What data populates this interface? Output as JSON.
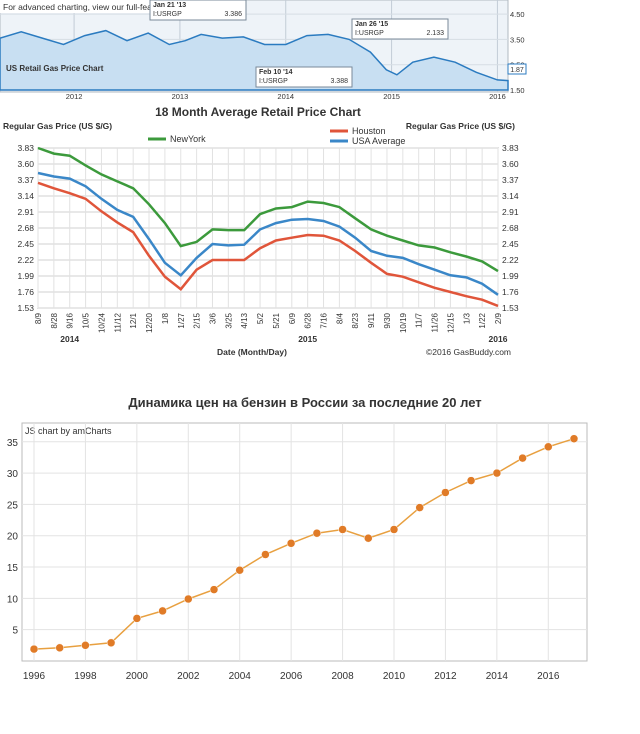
{
  "charts_meta": {
    "top_note": "For advanced charting, view our full-feature",
    "top_box_label": "US Retail Gas Price Chart",
    "callouts": [
      {
        "date": "Jan 21 '13",
        "symbol": "I:USRGP",
        "value": "3.386"
      },
      {
        "date": "Feb 10 '14",
        "symbol": "I:USRGP",
        "value": "3.388"
      },
      {
        "date": "Jan 26 '15",
        "symbol": "I:USRGP",
        "value": "2.133"
      }
    ],
    "current_badge": "1.87",
    "credit": "©2016 GasBuddy.com",
    "amcharts_credit": "JS chart by amCharts"
  },
  "chart_data": [
    {
      "type": "area",
      "title": "US Retail Gas Price Chart",
      "x": [
        2011.3,
        2011.5,
        2011.7,
        2011.9,
        2012.1,
        2012.3,
        2012.5,
        2012.7,
        2012.9,
        2013.05,
        2013.2,
        2013.4,
        2013.6,
        2013.8,
        2014.0,
        2014.2,
        2014.4,
        2014.6,
        2014.8,
        2014.95,
        2015.05,
        2015.2,
        2015.4,
        2015.6,
        2015.8,
        2016.0,
        2016.1
      ],
      "y": [
        3.55,
        3.8,
        3.55,
        3.3,
        3.65,
        3.85,
        3.45,
        3.75,
        3.3,
        3.45,
        3.7,
        3.55,
        3.6,
        3.3,
        3.3,
        3.65,
        3.7,
        3.5,
        3.0,
        2.3,
        2.1,
        2.6,
        2.8,
        2.6,
        2.2,
        1.9,
        1.87
      ],
      "x_ticks": [
        "2012",
        "2013",
        "2014",
        "2015",
        "2016"
      ],
      "y_ticks": [
        "1.50",
        "2.50",
        "3.50",
        "4.50"
      ],
      "xlim": [
        2011.3,
        2016.1
      ],
      "ylim": [
        1.5,
        4.9
      ]
    },
    {
      "type": "line",
      "title": "18 Month Average Retail Price Chart",
      "ylabel": "Regular Gas Price (US $/G)",
      "xlabel": "Date (Month/Day)",
      "categories": [
        "8/9",
        "8/28",
        "9/16",
        "10/5",
        "10/24",
        "11/12",
        "12/1",
        "12/20",
        "1/8",
        "1/27",
        "2/15",
        "3/6",
        "3/25",
        "4/13",
        "5/2",
        "5/21",
        "6/9",
        "6/28",
        "7/16",
        "8/4",
        "8/23",
        "9/11",
        "9/30",
        "10/19",
        "11/7",
        "11/26",
        "12/15",
        "1/3",
        "1/22",
        "2/9"
      ],
      "year_labels": [
        {
          "at": "9/16",
          "text": "2014"
        },
        {
          "at": "6/28",
          "text": "2015"
        },
        {
          "at": "2/9",
          "text": "2016"
        }
      ],
      "y_ticks": [
        1.53,
        1.76,
        1.99,
        2.22,
        2.45,
        2.68,
        2.91,
        3.14,
        3.37,
        3.6,
        3.83
      ],
      "ylim": [
        1.53,
        3.83
      ],
      "series": [
        {
          "name": "NewYork",
          "color": "#3c9a3c",
          "values": [
            3.83,
            3.75,
            3.72,
            3.58,
            3.45,
            3.35,
            3.25,
            3.02,
            2.75,
            2.42,
            2.48,
            2.66,
            2.65,
            2.65,
            2.88,
            2.96,
            2.98,
            3.06,
            3.04,
            2.98,
            2.82,
            2.66,
            2.57,
            2.5,
            2.43,
            2.4,
            2.33,
            2.27,
            2.2,
            2.06
          ]
        },
        {
          "name": "Houston",
          "color": "#e0553a",
          "values": [
            3.33,
            3.25,
            3.18,
            3.1,
            2.92,
            2.76,
            2.62,
            2.28,
            1.98,
            1.8,
            2.08,
            2.22,
            2.22,
            2.22,
            2.39,
            2.5,
            2.54,
            2.58,
            2.57,
            2.5,
            2.35,
            2.18,
            2.02,
            1.98,
            1.9,
            1.82,
            1.76,
            1.7,
            1.65,
            1.56
          ]
        },
        {
          "name": "USA Average",
          "color": "#3a87c8",
          "values": [
            3.47,
            3.42,
            3.39,
            3.28,
            3.1,
            2.94,
            2.84,
            2.52,
            2.18,
            2.0,
            2.25,
            2.45,
            2.43,
            2.44,
            2.66,
            2.75,
            2.8,
            2.81,
            2.78,
            2.7,
            2.54,
            2.35,
            2.28,
            2.25,
            2.16,
            2.08,
            2.0,
            1.97,
            1.88,
            1.72
          ]
        }
      ]
    },
    {
      "type": "line",
      "title": "Динамика цен на бензин в России за последние 20 лет",
      "x": [
        1996,
        1997,
        1998,
        1999,
        2000,
        2001,
        2002,
        2003,
        2004,
        2005,
        2006,
        2007,
        2008,
        2009,
        2010,
        2011,
        2012,
        2013,
        2014,
        2015,
        2016,
        2017
      ],
      "values": [
        1.9,
        2.1,
        2.5,
        2.9,
        6.8,
        8.0,
        9.9,
        11.4,
        14.5,
        17.0,
        18.8,
        20.4,
        21.0,
        19.6,
        21.0,
        24.5,
        26.9,
        28.8,
        30.0,
        32.4,
        34.2,
        35.5
      ],
      "x_ticks": [
        "1996",
        "1998",
        "2000",
        "2002",
        "2004",
        "2006",
        "2008",
        "2010",
        "2012",
        "2014",
        "2016"
      ],
      "y_ticks": [
        "5",
        "10",
        "15",
        "20",
        "25",
        "30",
        "35"
      ],
      "ylim": [
        0,
        38
      ],
      "color": "#e07b27"
    }
  ]
}
